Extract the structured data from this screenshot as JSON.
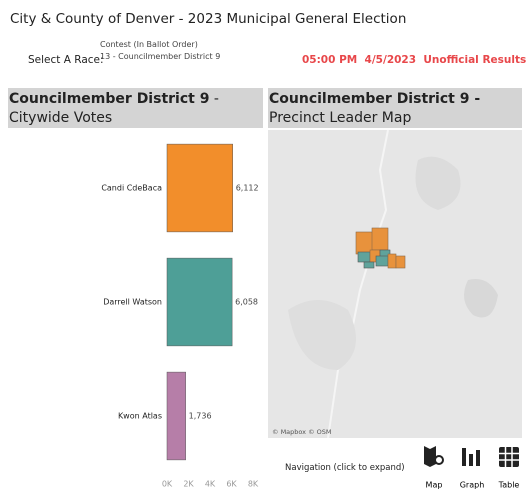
{
  "header": {
    "title": "City & County of Denver - 2023 Municipal General Election",
    "select_label": "Select A Race:",
    "contest_label": "Contest (In Ballot Order)",
    "contest_value": "13 - Councilmember District 9",
    "status": "05:00 PM  4/5/2023  Unofficial Results"
  },
  "left_panel": {
    "title_bold": "Councilmember District 9",
    "title_rest": "- Citywide Votes"
  },
  "right_panel": {
    "title_bold": "Councilmember District 9 -",
    "title_rest": "Precinct Leader Map",
    "attribution": "© Mapbox © OSM"
  },
  "navigation": {
    "label": "Navigation (click to expand)",
    "buttons": [
      "Map",
      "Graph",
      "Table"
    ]
  },
  "chart_data": {
    "type": "bar",
    "orientation": "horizontal",
    "categories": [
      "Candi CdeBaca",
      "Darrell Watson",
      "Kwon Atlas"
    ],
    "values": [
      6112,
      6058,
      1736
    ],
    "value_labels": [
      "6,112",
      "6,058",
      "1,736"
    ],
    "colors": [
      "#f28e2b",
      "#4e9f97",
      "#b67ea8"
    ],
    "xlim": [
      0,
      8000
    ],
    "xticks": [
      {
        "value": 0,
        "label": "0K"
      },
      {
        "value": 2000,
        "label": "2K"
      },
      {
        "value": 4000,
        "label": "4K"
      },
      {
        "value": 6000,
        "label": "6K"
      },
      {
        "value": 8000,
        "label": "8K"
      }
    ],
    "grid": false
  }
}
